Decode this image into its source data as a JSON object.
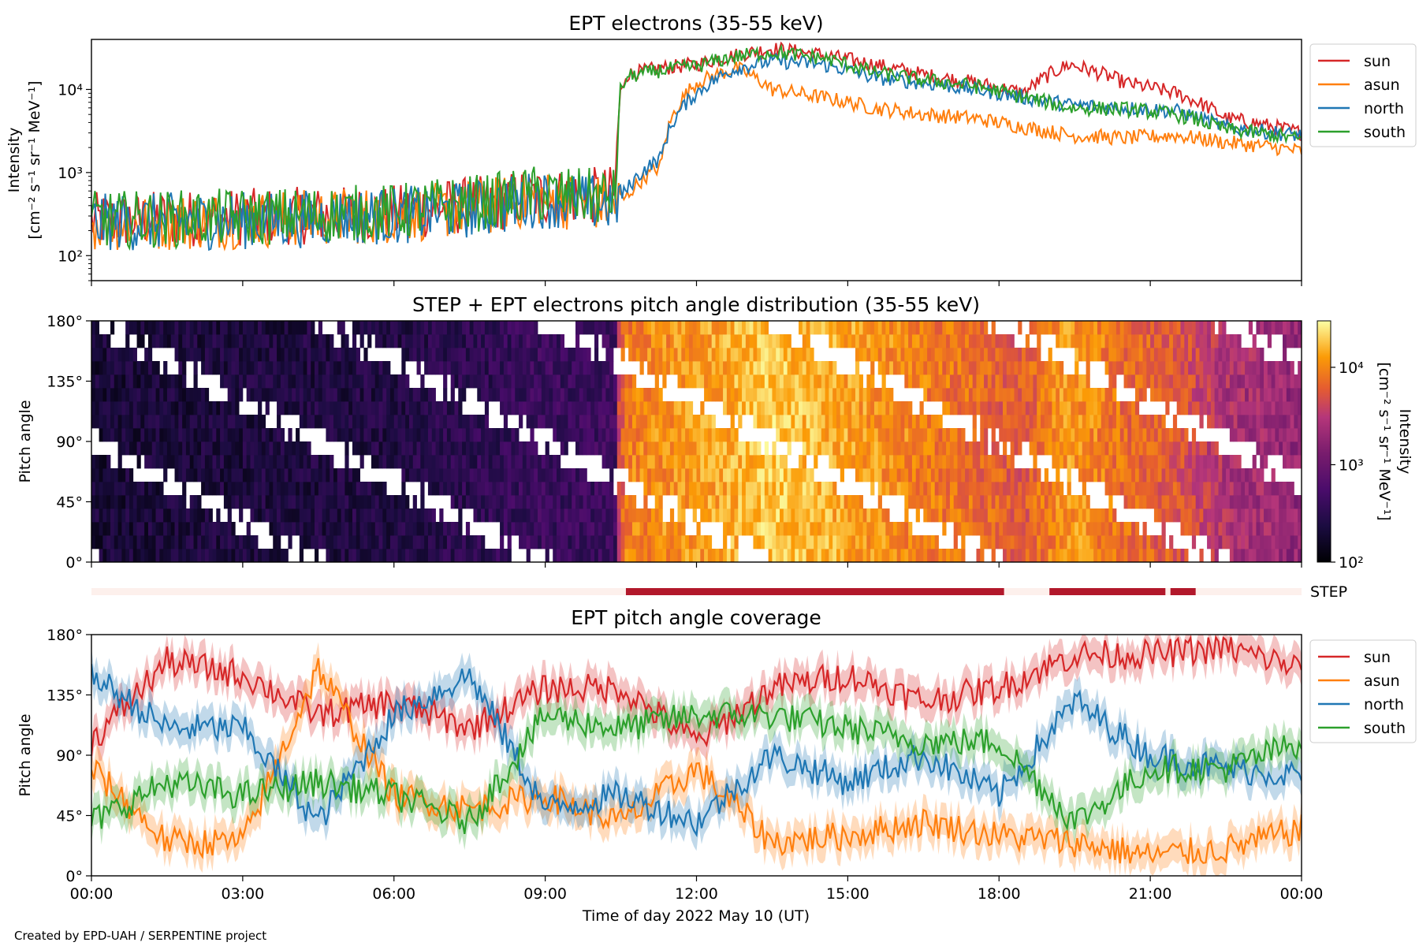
{
  "credit": "Created by EPD-UAH / SERPENTINE project",
  "colors": {
    "sun": "#d62728",
    "asun": "#ff7f0e",
    "north": "#1f77b4",
    "south": "#2ca02c",
    "step_bar_on": "#b2182b",
    "step_bar_off": "#fdf0ec"
  },
  "legend": [
    "sun",
    "asun",
    "north",
    "south"
  ],
  "chart_data": [
    {
      "type": "line",
      "title": "EPT electrons (35-55 keV)",
      "ylabel_line1": "Intensity",
      "ylabel_line2": "[cm⁻² s⁻¹ sr⁻¹ MeV⁻¹]",
      "yscale": "log",
      "ylim": [
        50,
        40000
      ],
      "y_ticks": [
        "10²",
        "10³",
        "10⁴"
      ],
      "x_hours": [
        0,
        2,
        4,
        5,
        6,
        7,
        8,
        8.8,
        9.5,
        10.4,
        10.6,
        11.3,
        12,
        12.8,
        13.5,
        14.5,
        15.5,
        16.5,
        17.5,
        18.5,
        19.4,
        20.5,
        21.5,
        22.5,
        23.5,
        24
      ],
      "series": [
        {
          "name": "sun",
          "values": [
            260,
            280,
            300,
            310,
            320,
            380,
            420,
            520,
            500,
            550,
            15000,
            18000,
            20000,
            26000,
            31000,
            26000,
            20000,
            15000,
            12000,
            9000,
            20000,
            12000,
            9000,
            4500,
            3500,
            3000
          ]
        },
        {
          "name": "asun",
          "values": [
            250,
            260,
            280,
            300,
            310,
            350,
            400,
            500,
            450,
            420,
            500,
            1200,
            12000,
            18000,
            10000,
            8000,
            6000,
            5000,
            4500,
            3500,
            2800,
            2600,
            2800,
            2300,
            2000,
            1800
          ]
        },
        {
          "name": "north",
          "values": [
            250,
            260,
            270,
            300,
            300,
            340,
            380,
            480,
            450,
            420,
            600,
            1500,
            9000,
            18000,
            22000,
            20000,
            14000,
            12000,
            10000,
            8000,
            6500,
            6000,
            5500,
            3500,
            3000,
            2800
          ]
        },
        {
          "name": "south",
          "values": [
            270,
            280,
            300,
            320,
            330,
            400,
            450,
            550,
            520,
            500,
            14000,
            17000,
            19000,
            25000,
            28000,
            24000,
            16000,
            13000,
            11000,
            8000,
            6000,
            5800,
            5000,
            3300,
            2800,
            2500
          ]
        }
      ]
    },
    {
      "type": "heatmap",
      "title": "STEP + EPT electrons pitch angle distribution (35-55 keV)",
      "ylabel": "Pitch angle",
      "y_ticks": [
        "0°",
        "45°",
        "90°",
        "135°",
        "180°"
      ],
      "colorbar_label_line1": "Intensity",
      "colorbar_label_line2": "[cm⁻² s⁻¹ sr⁻¹ MeV⁻¹]",
      "colorbar_ticks": [
        "10²",
        "10³",
        "10⁴"
      ],
      "colorscale": "inferno",
      "zscale": "log",
      "zlim": [
        100,
        30000
      ]
    },
    {
      "type": "bar",
      "label": "STEP",
      "on_intervals_hours": [
        [
          10.6,
          18.1
        ],
        [
          19.0,
          21.3
        ],
        [
          21.4,
          21.9
        ]
      ]
    },
    {
      "type": "line",
      "title": "EPT pitch angle coverage",
      "ylabel": "Pitch angle",
      "xlabel": "Time of day 2022 May 10 (UT)",
      "ylim": [
        0,
        180
      ],
      "y_ticks": [
        "0°",
        "45°",
        "90°",
        "135°",
        "180°"
      ],
      "x_ticks": [
        "00:00",
        "03:00",
        "06:00",
        "09:00",
        "12:00",
        "15:00",
        "18:00",
        "21:00",
        "00:00"
      ],
      "x_hours": [
        0,
        1.5,
        3,
        4.5,
        6,
        7.5,
        9,
        10.5,
        12,
        13.5,
        15,
        16.5,
        18,
        19.5,
        21,
        22.5,
        24
      ],
      "series": [
        {
          "name": "sun",
          "values": [
            100,
            160,
            150,
            120,
            130,
            110,
            140,
            140,
            100,
            140,
            150,
            130,
            140,
            165,
            165,
            170,
            155
          ]
        },
        {
          "name": "asun",
          "values": [
            80,
            25,
            25,
            155,
            60,
            50,
            60,
            40,
            80,
            25,
            30,
            40,
            30,
            25,
            15,
            20,
            35
          ]
        },
        {
          "name": "north",
          "values": [
            150,
            110,
            110,
            40,
            120,
            150,
            50,
            60,
            40,
            90,
            70,
            90,
            60,
            130,
            90,
            80,
            75
          ]
        },
        {
          "name": "south",
          "values": [
            40,
            70,
            60,
            70,
            60,
            40,
            120,
            110,
            120,
            120,
            110,
            100,
            100,
            40,
            80,
            80,
            100
          ]
        }
      ]
    }
  ]
}
